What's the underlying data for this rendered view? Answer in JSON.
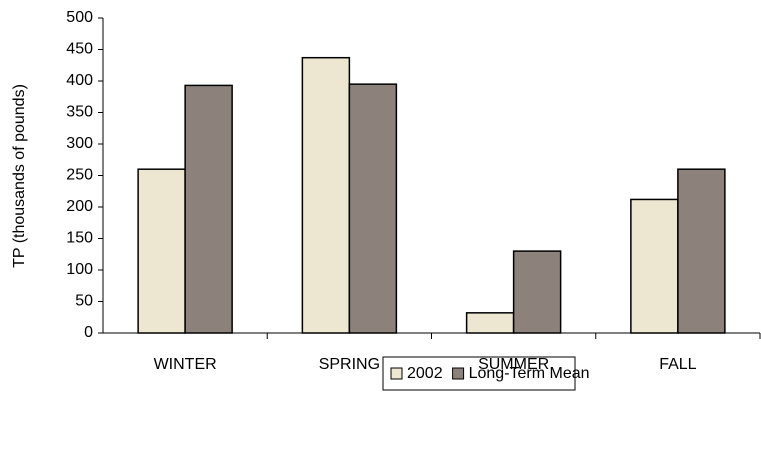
{
  "chart_data": {
    "type": "bar",
    "y_label": "TP (thousands of pounds)",
    "categories": [
      "WINTER",
      "SPRING",
      "SUMMER",
      "FALL"
    ],
    "series": [
      {
        "name": "2002",
        "color": "#ede6d0",
        "values": [
          260,
          437,
          32,
          212
        ]
      },
      {
        "name": "Long-Term Mean",
        "color": "#8c827b",
        "values": [
          393,
          395,
          130,
          260
        ]
      }
    ],
    "ylim": [
      0,
      500
    ],
    "yticks": [
      0,
      50,
      100,
      150,
      200,
      250,
      300,
      350,
      400,
      450,
      500
    ]
  }
}
